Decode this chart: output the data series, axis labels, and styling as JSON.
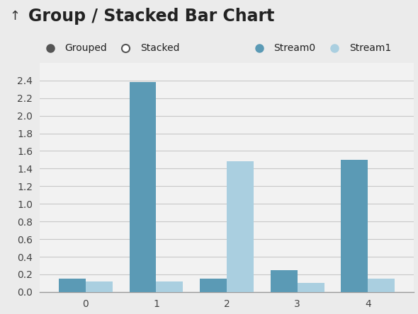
{
  "title": "Group / Stacked Bar Chart",
  "categories": [
    0,
    1,
    2,
    3,
    4
  ],
  "stream0_values": [
    0.15,
    2.38,
    0.15,
    0.25,
    1.5
  ],
  "stream1_values": [
    0.12,
    0.12,
    1.48,
    0.1,
    0.15
  ],
  "stream0_color": "#5b9ab5",
  "stream1_color": "#aacfe0",
  "background_color": "#ebebeb",
  "plot_bg_color": "#f2f2f2",
  "title_bg_color": "#d0d0d0",
  "ylim": [
    0,
    2.6
  ],
  "yticks": [
    0.0,
    0.2,
    0.4,
    0.6,
    0.8,
    1.0,
    1.2,
    1.4,
    1.6,
    1.8,
    2.0,
    2.2,
    2.4
  ],
  "bar_width": 0.38,
  "title_fontsize": 17,
  "tick_fontsize": 10,
  "legend_fontsize": 10,
  "grid_color": "#c8c8c8",
  "title_color": "#222222",
  "tick_color": "#444444",
  "legend_marker_color_grouped": "#555555",
  "legend_marker_color_stream0": "#5b9ab5",
  "legend_marker_color_stream1": "#aacfe0"
}
